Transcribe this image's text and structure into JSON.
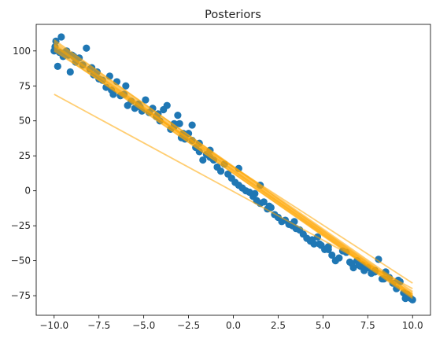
{
  "chart_data": {
    "type": "scatter",
    "title": "Posteriors",
    "xlabel": "",
    "ylabel": "",
    "xlim": [
      -11.0,
      11.0
    ],
    "ylim": [
      -89.0,
      119.0
    ],
    "x_ticks": [
      -10.0,
      -7.5,
      -5.0,
      -2.5,
      0.0,
      2.5,
      5.0,
      7.5,
      10.0
    ],
    "x_tick_labels": [
      "−10.0",
      "−7.5",
      "−5.0",
      "−2.5",
      "0.0",
      "2.5",
      "5.0",
      "7.5",
      "10.0"
    ],
    "y_ticks": [
      -75,
      -50,
      -25,
      0,
      25,
      50,
      75,
      100
    ],
    "y_tick_labels": [
      "−75",
      "−50",
      "−25",
      "0",
      "25",
      "50",
      "75",
      "100"
    ],
    "grid": false,
    "colors": {
      "points": "#1f77b4",
      "lines": "#ffa500"
    },
    "series": [
      {
        "kind": "scatter",
        "x": [
          -10.0,
          -9.9,
          -9.8,
          -9.7,
          -9.6,
          -9.5,
          -9.3,
          -9.1,
          -9.0,
          -8.8,
          -8.6,
          -8.4,
          -8.2,
          -8.0,
          -7.8,
          -7.6,
          -7.5,
          -7.3,
          -7.1,
          -6.9,
          -6.7,
          -6.5,
          -6.3,
          -6.1,
          -5.9,
          -5.7,
          -5.5,
          -5.3,
          -5.1,
          -4.9,
          -4.7,
          -4.5,
          -4.3,
          -4.1,
          -3.9,
          -3.7,
          -3.5,
          -3.3,
          -3.1,
          -2.9,
          -2.7,
          -2.5,
          -2.3,
          -2.1,
          -1.9,
          -1.7,
          -1.5,
          -1.3,
          -1.1,
          -0.9,
          -0.7,
          -0.5,
          -0.3,
          -0.1,
          0.1,
          0.3,
          0.5,
          0.7,
          0.9,
          1.1,
          1.3,
          1.5,
          1.7,
          1.9,
          2.1,
          2.3,
          2.5,
          2.7,
          2.9,
          3.1,
          3.3,
          3.5,
          3.7,
          3.9,
          4.1,
          4.3,
          4.5,
          4.7,
          4.9,
          5.1,
          5.3,
          5.5,
          5.7,
          5.9,
          6.1,
          6.3,
          6.5,
          6.7,
          6.9,
          7.1,
          7.3,
          7.5,
          7.7,
          7.9,
          8.1,
          8.3,
          8.5,
          8.7,
          8.9,
          9.1,
          9.3,
          9.5,
          9.7,
          9.9,
          10.0,
          -9.95,
          -9.4,
          -8.9,
          -7.9,
          -6.8,
          -5.2,
          -4.2,
          -3.3,
          -2.8,
          -2.3,
          -1.9,
          -1.3,
          0.3,
          1.2,
          2.0,
          3.4,
          4.4,
          5.3,
          6.6,
          7.2,
          7.9,
          8.4,
          9.2,
          9.6,
          -9.2,
          -6.0,
          -3.0,
          1.5,
          4.8,
          7.0
        ],
        "y": [
          100,
          107,
          89,
          99,
          110,
          96,
          100,
          85,
          97,
          92,
          95,
          90,
          102,
          87,
          83,
          85,
          80,
          79,
          74,
          82,
          69,
          78,
          68,
          69,
          61,
          64,
          59,
          62,
          57,
          65,
          56,
          59,
          53,
          50,
          58,
          61,
          44,
          46,
          54,
          38,
          37,
          41,
          36,
          31,
          28,
          22,
          26,
          29,
          22,
          17,
          14,
          19,
          12,
          9,
          6,
          4,
          2,
          0,
          -1,
          -4,
          -7,
          -9,
          -8,
          -13,
          -12,
          -17,
          -19,
          -22,
          -21,
          -24,
          -25,
          -27,
          -28,
          -31,
          -34,
          -36,
          -38,
          -33,
          -39,
          -42,
          -42,
          -46,
          -50,
          -48,
          -43,
          -44,
          -51,
          -55,
          -50,
          -54,
          -57,
          -55,
          -59,
          -57,
          -49,
          -63,
          -58,
          -62,
          -66,
          -70,
          -65,
          -73,
          -74,
          -77,
          -78,
          103,
          99,
          96,
          88,
          72,
          60,
          55,
          48,
          41,
          47,
          34,
          24,
          16,
          -2,
          -11,
          -22,
          -35,
          -40,
          -52,
          -53,
          -58,
          -63,
          -64,
          -77,
          97,
          75,
          48,
          4,
          -38,
          -53
        ],
        "color": "#1f77b4"
      },
      {
        "kind": "lines",
        "color": "#ffa500",
        "lines": [
          [
            [
              -10,
              104
            ],
            [
              10,
              -75
            ]
          ],
          [
            [
              -10,
              105
            ],
            [
              10,
              -74
            ]
          ],
          [
            [
              -10,
              103
            ],
            [
              10,
              -76
            ]
          ],
          [
            [
              -10,
              106
            ],
            [
              10,
              -73
            ]
          ],
          [
            [
              -10,
              102
            ],
            [
              10,
              -77
            ]
          ],
          [
            [
              -10,
              104.5
            ],
            [
              10,
              -74.5
            ]
          ],
          [
            [
              -10,
              103.5
            ],
            [
              10,
              -75.5
            ]
          ],
          [
            [
              -10,
              107
            ],
            [
              10,
              -72
            ]
          ],
          [
            [
              -10,
              101
            ],
            [
              10,
              -76
            ]
          ],
          [
            [
              -10,
              108
            ],
            [
              10,
              -74
            ]
          ],
          [
            [
              -10,
              100
            ],
            [
              10,
              -66
            ]
          ],
          [
            [
              -10,
              69
            ],
            [
              10,
              -70
            ]
          ]
        ]
      }
    ]
  }
}
